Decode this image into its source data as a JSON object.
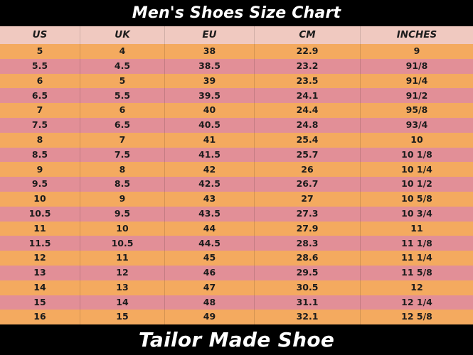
{
  "title": "Men's Shoes Size Chart",
  "footer": "Tailor Made Shoe",
  "colors": {
    "bar_bg": "#000000",
    "bar_text": "#ffffff",
    "header_row_bg": "#f0c9c0",
    "row_orange": "#f4aa5f",
    "row_pink": "#e28f97",
    "cell_text": "#1c1c1c",
    "divider": "rgba(0,0,0,0.13)"
  },
  "chart_data": {
    "type": "table",
    "title": "Men's Shoes Size Chart",
    "columns": [
      "US",
      "UK",
      "EU",
      "CM",
      "INCHES"
    ],
    "rows": [
      [
        "5",
        "4",
        "38",
        "22.9",
        "9"
      ],
      [
        "5.5",
        "4.5",
        "38.5",
        "23.2",
        "91/8"
      ],
      [
        "6",
        "5",
        "39",
        "23.5",
        "91/4"
      ],
      [
        "6.5",
        "5.5",
        "39.5",
        "24.1",
        "91/2"
      ],
      [
        "7",
        "6",
        "40",
        "24.4",
        "95/8"
      ],
      [
        "7.5",
        "6.5",
        "40.5",
        "24.8",
        "93/4"
      ],
      [
        "8",
        "7",
        "41",
        "25.4",
        "10"
      ],
      [
        "8.5",
        "7.5",
        "41.5",
        "25.7",
        "10 1/8"
      ],
      [
        "9",
        "8",
        "42",
        "26",
        "10 1/4"
      ],
      [
        "9.5",
        "8.5",
        "42.5",
        "26.7",
        "10 1/2"
      ],
      [
        "10",
        "9",
        "43",
        "27",
        "10 5/8"
      ],
      [
        "10.5",
        "9.5",
        "43.5",
        "27.3",
        "10 3/4"
      ],
      [
        "11",
        "10",
        "44",
        "27.9",
        "11"
      ],
      [
        "11.5",
        "10.5",
        "44.5",
        "28.3",
        "11 1/8"
      ],
      [
        "12",
        "11",
        "45",
        "28.6",
        "11 1/4"
      ],
      [
        "13",
        "12",
        "46",
        "29.5",
        "11 5/8"
      ],
      [
        "14",
        "13",
        "47",
        "30.5",
        "12"
      ],
      [
        "15",
        "14",
        "48",
        "31.1",
        "12 1/4"
      ],
      [
        "16",
        "15",
        "49",
        "32.1",
        "12 5/8"
      ]
    ],
    "layout": {
      "striping": [
        "orange",
        "pink"
      ],
      "title_position": "top-black-bar",
      "footer_text": "Tailor Made Shoe"
    }
  }
}
